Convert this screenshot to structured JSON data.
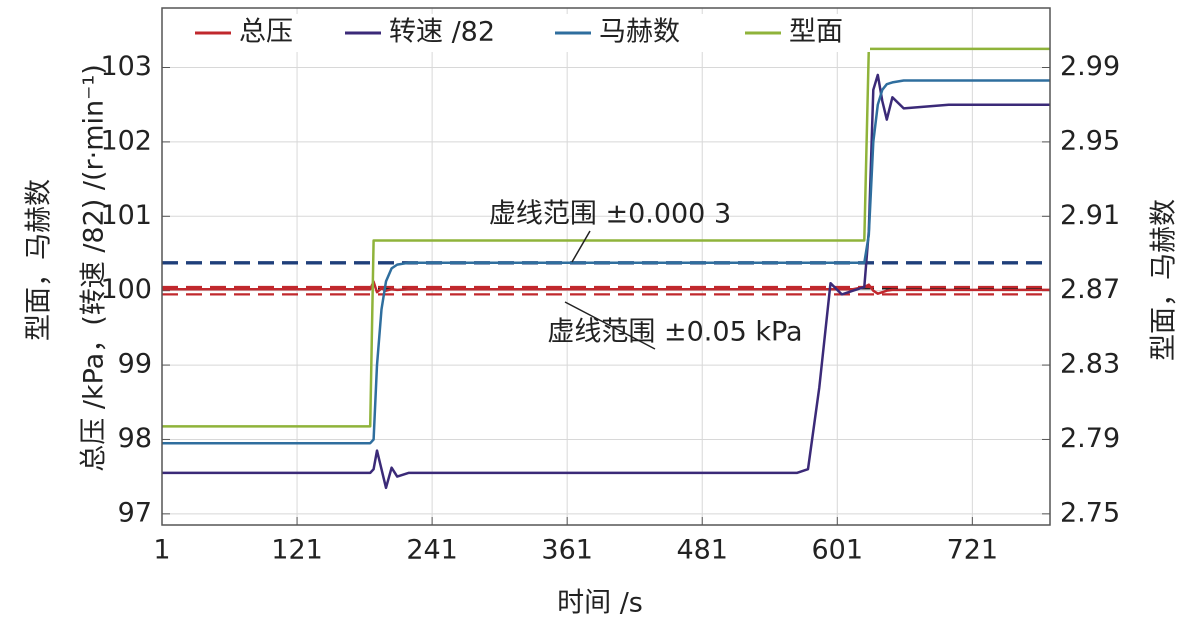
{
  "chart_data": {
    "type": "line",
    "xlabel": "时间 /s",
    "ylabel": [
      "型面，马赫数",
      "总压 /kPa，(转速 /82) /(r·min⁻¹)"
    ],
    "y2label": "型面，马赫数",
    "x": [
      1,
      186,
      189,
      192,
      196,
      200,
      205,
      210,
      220,
      400,
      565,
      575,
      585,
      595,
      605,
      615,
      625,
      629,
      633,
      637,
      641,
      645,
      650,
      660,
      700,
      790
    ],
    "series": [
      {
        "name": "总压",
        "color": "#c0282d",
        "axis": "y",
        "values": [
          100.02,
          100.02,
          100.12,
          99.98,
          100.03,
          100.0,
          100.02,
          100.01,
          100.02,
          100.02,
          100.02,
          100.02,
          100.02,
          100.02,
          100.02,
          100.02,
          100.05,
          100.08,
          100.0,
          99.96,
          99.98,
          100.0,
          100.01,
          100.01,
          100.01,
          100.01
        ]
      },
      {
        "name": "转速 /82",
        "color": "#3b2a78",
        "axis": "y",
        "values": [
          97.55,
          97.55,
          97.6,
          97.85,
          97.6,
          97.35,
          97.62,
          97.5,
          97.55,
          97.55,
          97.55,
          97.6,
          98.7,
          100.1,
          99.95,
          100.0,
          100.05,
          100.8,
          102.7,
          102.9,
          102.55,
          102.3,
          102.6,
          102.45,
          102.5,
          102.5
        ]
      },
      {
        "name": "马赫数",
        "color": "#2f6e9e",
        "axis": "y2",
        "values": [
          2.788,
          2.788,
          2.79,
          2.83,
          2.86,
          2.875,
          2.882,
          2.884,
          2.885,
          2.885,
          2.885,
          2.885,
          2.885,
          2.885,
          2.885,
          2.885,
          2.885,
          2.9,
          2.95,
          2.97,
          2.978,
          2.981,
          2.982,
          2.983,
          2.983,
          2.983
        ]
      },
      {
        "name": "型面",
        "color": "#8fb33a",
        "axis": "y2",
        "values": [
          2.797,
          2.797,
          2.897,
          2.897,
          2.897,
          2.897,
          2.897,
          2.897,
          2.897,
          2.897,
          2.897,
          2.897,
          2.897,
          2.897,
          2.897,
          2.897,
          2.897,
          3.0,
          3.0,
          3.0,
          3.0,
          3.0,
          3.0,
          3.0,
          3.0,
          3.0
        ]
      }
    ],
    "reference_lines": [
      {
        "axis": "y2",
        "color": "#1f3f7a",
        "values": [
          2.8847,
          2.8853
        ]
      },
      {
        "axis": "y",
        "color": "#222222",
        "values": [
          100.03
        ]
      },
      {
        "axis": "y",
        "color": "#c0282d",
        "values": [
          99.95,
          100.05
        ]
      }
    ],
    "annotations": [
      {
        "text": "虚线范围 ±0.000 3"
      },
      {
        "text": "虚线范围 ±0.05 kPa"
      }
    ],
    "xlim": [
      1,
      790
    ],
    "xticks": [
      1,
      121,
      241,
      361,
      481,
      601,
      721
    ],
    "ylim": [
      96.85,
      103.8
    ],
    "yticks": [
      97,
      98,
      99,
      100,
      101,
      102,
      103
    ],
    "y2lim": [
      2.744,
      3.022
    ],
    "y2ticks": [
      2.75,
      2.79,
      2.83,
      2.87,
      2.91,
      2.95,
      2.99
    ],
    "grid": true,
    "legend": "top"
  }
}
